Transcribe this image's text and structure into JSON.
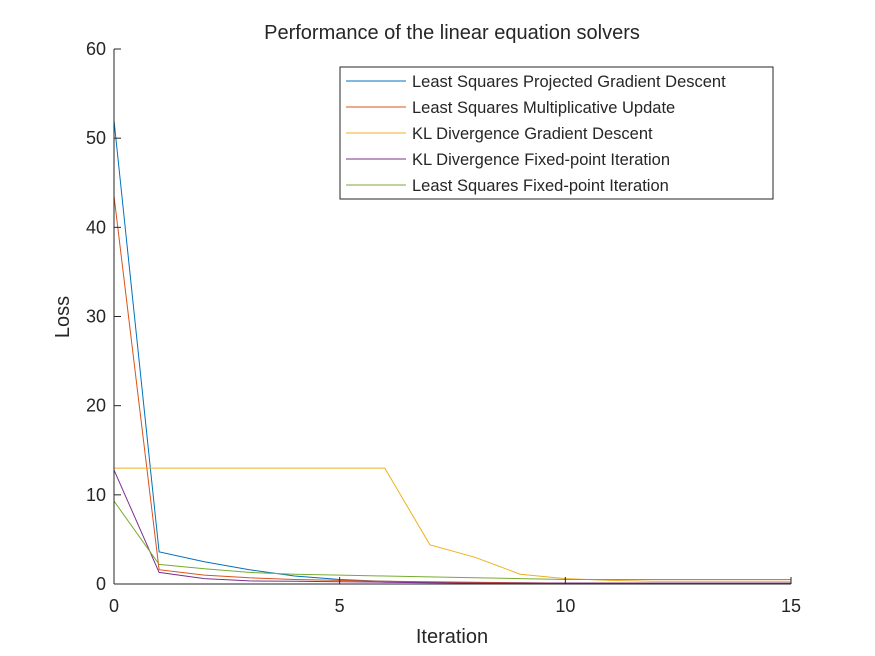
{
  "chart_data": {
    "type": "line",
    "title": "Performance of the linear equation solvers",
    "xlabel": "Iteration",
    "ylabel": "Loss",
    "xlim": [
      0,
      15
    ],
    "ylim": [
      0,
      60
    ],
    "xticks": [
      0,
      5,
      10,
      15
    ],
    "yticks": [
      0,
      10,
      20,
      30,
      40,
      50,
      60
    ],
    "grid": false,
    "legend_position": "top-right",
    "series": [
      {
        "name": "Least Squares Projected Gradient Descent",
        "color": "#0072BD",
        "x": [
          0,
          1,
          2,
          3,
          4,
          5,
          6,
          7,
          8,
          9,
          10,
          11,
          12,
          13,
          14,
          15
        ],
        "y": [
          52.0,
          3.6,
          2.5,
          1.6,
          0.9,
          0.5,
          0.3,
          0.2,
          0.15,
          0.12,
          0.1,
          0.1,
          0.1,
          0.1,
          0.1,
          0.1
        ]
      },
      {
        "name": "Least Squares Multiplicative Update",
        "color": "#D95319",
        "x": [
          0,
          1,
          2,
          3,
          4,
          5,
          6,
          7,
          8,
          9,
          10,
          11,
          12,
          13,
          14,
          15
        ],
        "y": [
          43.5,
          1.6,
          1.0,
          0.7,
          0.5,
          0.4,
          0.3,
          0.25,
          0.2,
          0.15,
          0.1,
          0.1,
          0.1,
          0.1,
          0.1,
          0.1
        ]
      },
      {
        "name": "KL Divergence Gradient Descent",
        "color": "#EDB120",
        "x": [
          0,
          1,
          2,
          3,
          4,
          5,
          6,
          7,
          8,
          9,
          10,
          11,
          12,
          13,
          14,
          15
        ],
        "y": [
          13.0,
          13.0,
          13.0,
          13.0,
          13.0,
          13.0,
          13.0,
          4.4,
          3.0,
          1.1,
          0.6,
          0.4,
          0.3,
          0.3,
          0.3,
          0.3
        ]
      },
      {
        "name": "KL Divergence Fixed-point Iteration",
        "color": "#7E2F8E",
        "x": [
          0,
          1,
          2,
          3,
          4,
          5,
          6,
          7,
          8,
          9,
          10,
          11,
          12,
          13,
          14,
          15
        ],
        "y": [
          12.8,
          1.3,
          0.6,
          0.35,
          0.3,
          0.25,
          0.2,
          0.15,
          0.1,
          0.1,
          0.1,
          0.1,
          0.1,
          0.1,
          0.1,
          0.1
        ]
      },
      {
        "name": "Least Squares Fixed-point Iteration",
        "color": "#77AC30",
        "x": [
          0,
          1,
          2,
          3,
          4,
          5,
          6,
          7,
          8,
          9,
          10,
          11,
          12,
          13,
          14,
          15
        ],
        "y": [
          9.3,
          2.2,
          1.7,
          1.3,
          1.1,
          1.0,
          0.9,
          0.8,
          0.7,
          0.6,
          0.5,
          0.5,
          0.5,
          0.5,
          0.5,
          0.5
        ]
      }
    ]
  }
}
